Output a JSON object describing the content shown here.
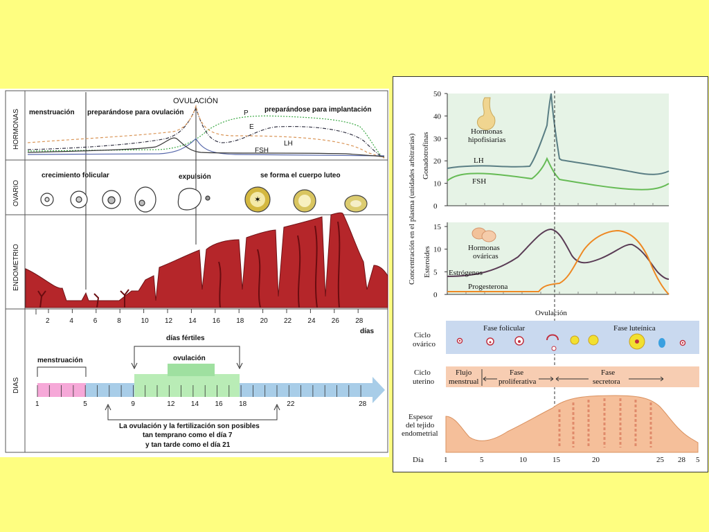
{
  "left": {
    "rows": {
      "hormonas": "HORMONAS",
      "ovario": "OVARIO",
      "endometrio": "ENDOMETRIO",
      "dias": "DIAS"
    },
    "ovulacion_top": "OVULACIÓN",
    "menstruacion": "menstruación",
    "preparandose_ovulacion": "preparándose para ovulación",
    "preparandose_implantacion": "preparándose para implantación",
    "hormone_labels": {
      "p": "P",
      "e": "E",
      "lh": "LH",
      "fsh": "FSH"
    },
    "crecimiento_folicular": "crecimiento folicular",
    "expulsion": "expulsión",
    "cuerpo_luteo": "se forma el cuerpo luteo",
    "day_ticks": [
      "2",
      "4",
      "6",
      "8",
      "10",
      "12",
      "14",
      "16",
      "18",
      "20",
      "22",
      "24",
      "26",
      "28"
    ],
    "dias_unit": "días",
    "dias_fertiles": "días fértiles",
    "ovulacion_box": "ovulación",
    "menstruacion_bar": "menstruación",
    "bar_numbers": [
      "1",
      "5",
      "9",
      "12",
      "14",
      "16",
      "18",
      "22",
      "28"
    ],
    "note": [
      "La ovulación y la fertilización son posibles",
      "tan temprano como el día 7",
      "y tan tarde como el día 21"
    ]
  },
  "right": {
    "yaxis_label": "Concentración en el plasma (unidades arbitrarias)",
    "gonadotrofinas": "Gonadotrofinas",
    "esteroides": "Esteroides",
    "top_ticks": [
      "50",
      "40",
      "30",
      "20",
      "10",
      "0"
    ],
    "bottom_ticks": [
      "15",
      "10",
      "5",
      "0"
    ],
    "hormonas_hipofisiarias": [
      "Hormonas",
      "hipofisiarias"
    ],
    "lh": "LH",
    "fsh": "FSH",
    "hormonas_ovaricas": [
      "Hormonas",
      "ováricas"
    ],
    "estrogenos": "Estrógenos",
    "progesterona": "Progesterona",
    "ovulacion": "Ovulación",
    "ciclo_ovarico": [
      "Ciclo",
      "ovárico"
    ],
    "fase_folicular": "Fase folicular",
    "fase_luteinica": "Fase luteínica",
    "ciclo_uterino": [
      "Ciclo",
      "uterino"
    ],
    "flujo_menstrual": [
      "Flujo",
      "menstrual"
    ],
    "fase_proliferativa": [
      "Fase",
      "proliferativa"
    ],
    "fase_secretora": [
      "Fase",
      "secretora"
    ],
    "espesor": [
      "Espesor",
      "del tejido",
      "endometrial"
    ],
    "dia_label": "Día",
    "day_numbers": [
      "1",
      "5",
      "10",
      "15",
      "20",
      "25",
      "28",
      "5"
    ]
  },
  "colors": {
    "background": "#fefe80",
    "endometrium": "#b5262a",
    "chart_bg": "#e6f3e6",
    "ovary_band": "#c9d9ef",
    "uterine_band": "#f7cdb2",
    "lh": "#5a7e84",
    "fsh": "#66bb55",
    "estrogen": "#5a3c55",
    "progesterone": "#ee8822"
  }
}
